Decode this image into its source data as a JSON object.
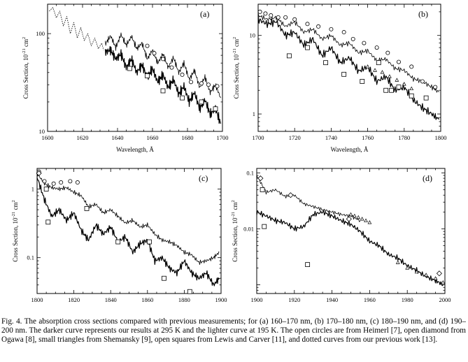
{
  "caption": "Fig.  4. The absorption cross sections compared with previous measurements; for (a) 160–170 nm, (b) 170–180 nm, (c) 180–190 nm, and (d) 190–200 nm. The darker curve represents our results at 295 K and the lighter curve at 195 K. The open circles are from Heimerl [7], open diamond from Ogawa [8], small triangles from Shemansky [9], open squares from Lewis and Carver [11], and dotted curves from our previous work [13].",
  "chart_data": [
    {
      "type": "line",
      "panel_label": "(a)",
      "xlabel": "Wavelength,  Å",
      "ylabel": "Cross Section,  10",
      "ylabel_exp1": "-21",
      "ylabel_unit": "cm",
      "ylabel_exp2": "2",
      "xlim": [
        1600,
        1700
      ],
      "xticks": [
        1600,
        1620,
        1640,
        1660,
        1680,
        1700
      ],
      "xtick_labels": [
        "1600",
        "1620",
        "1640",
        "1660",
        "1680",
        "1700"
      ],
      "yscale": "log",
      "ylim": [
        10,
        200
      ],
      "yticks": [
        10,
        100
      ],
      "ytick_labels": [
        "10",
        "100"
      ],
      "series": [
        {
          "name": "dotted (previous work)",
          "style": "dotted",
          "x": [
            1601,
            1603,
            1605,
            1607,
            1609,
            1611,
            1613,
            1615,
            1617,
            1619,
            1621,
            1623,
            1625,
            1627,
            1629,
            1631,
            1632
          ],
          "y": [
            170,
            185,
            145,
            170,
            120,
            150,
            100,
            130,
            90,
            115,
            85,
            100,
            75,
            90,
            70,
            80,
            68
          ]
        },
        {
          "name": "195 K",
          "style": "light",
          "x": [
            1633,
            1636,
            1639,
            1642,
            1645,
            1648,
            1651,
            1654,
            1657,
            1660,
            1663,
            1666,
            1669,
            1672,
            1675,
            1678,
            1681,
            1684,
            1687,
            1690,
            1693,
            1696,
            1699
          ],
          "y": [
            78,
            95,
            72,
            98,
            76,
            94,
            70,
            80,
            55,
            68,
            50,
            62,
            45,
            57,
            40,
            50,
            34,
            42,
            28,
            36,
            25,
            30,
            22
          ]
        },
        {
          "name": "295 K",
          "style": "dark",
          "x": [
            1633,
            1636,
            1639,
            1642,
            1645,
            1648,
            1651,
            1654,
            1657,
            1660,
            1663,
            1666,
            1669,
            1672,
            1675,
            1678,
            1681,
            1684,
            1687,
            1690,
            1693,
            1696,
            1699
          ],
          "y": [
            65,
            68,
            55,
            62,
            45,
            55,
            40,
            48,
            36,
            44,
            32,
            38,
            28,
            34,
            24,
            29,
            20,
            25,
            17,
            21,
            15,
            17,
            12
          ]
        }
      ],
      "markers": [
        {
          "name": "Heimerl",
          "shape": "circle",
          "x": [
            1657,
            1661,
            1666,
            1671,
            1677,
            1682,
            1688,
            1692,
            1697
          ],
          "y": [
            75,
            63,
            55,
            45,
            38,
            32,
            31,
            30,
            29
          ]
        },
        {
          "name": "Lewis and Carver",
          "shape": "square",
          "x": [
            1647,
            1657,
            1666,
            1677,
            1688,
            1696
          ],
          "y": [
            44,
            37,
            26,
            22,
            20,
            17
          ]
        }
      ]
    },
    {
      "type": "line",
      "panel_label": "(b)",
      "xlabel": "Wavelength,  Å",
      "ylabel": "Cross Section,  10",
      "ylabel_exp1": "-21",
      "ylabel_unit": "cm",
      "ylabel_exp2": "2",
      "xlim": [
        1700,
        1800
      ],
      "xticks": [
        1700,
        1720,
        1740,
        1760,
        1780,
        1800
      ],
      "xtick_labels": [
        "1700",
        "1720",
        "1740",
        "1760",
        "1780",
        "1800"
      ],
      "yscale": "log",
      "ylim": [
        0.6,
        25
      ],
      "yticks": [
        1,
        10
      ],
      "ytick_labels": [
        "1",
        "10"
      ],
      "series": [
        {
          "name": "195 K",
          "style": "light",
          "x": [
            1700,
            1705,
            1710,
            1715,
            1720,
            1725,
            1730,
            1735,
            1740,
            1745,
            1750,
            1755,
            1760,
            1765,
            1770,
            1775,
            1780,
            1785,
            1790,
            1795,
            1799
          ],
          "y": [
            18,
            16,
            17,
            13,
            15,
            11,
            12,
            9,
            10,
            7.5,
            8,
            6.0,
            6.4,
            4.8,
            5.0,
            3.8,
            3.6,
            2.8,
            2.6,
            2.2,
            1.9
          ]
        },
        {
          "name": "295 K",
          "style": "dark",
          "x": [
            1700,
            1705,
            1710,
            1715,
            1720,
            1725,
            1730,
            1735,
            1740,
            1745,
            1750,
            1755,
            1760,
            1765,
            1770,
            1775,
            1780,
            1785,
            1790,
            1795,
            1799
          ],
          "y": [
            16,
            14,
            15,
            10,
            11,
            7.5,
            9.0,
            5.5,
            7.0,
            4.5,
            5.2,
            3.5,
            4.0,
            2.6,
            3.0,
            2.0,
            2.2,
            1.5,
            1.2,
            1.0,
            0.85
          ]
        }
      ],
      "markers": [
        {
          "name": "Heimerl",
          "shape": "circle",
          "x": [
            1701,
            1704,
            1707,
            1711,
            1715,
            1720,
            1727,
            1733,
            1740,
            1747,
            1752,
            1758,
            1765,
            1771,
            1777,
            1784,
            1790,
            1797
          ],
          "y": [
            20,
            19,
            18,
            17,
            17,
            16,
            14,
            13,
            12,
            11,
            9,
            8,
            7,
            6,
            4.6,
            4.0,
            2.6,
            2.2
          ]
        },
        {
          "name": "Lewis and Carver",
          "shape": "square",
          "x": [
            1717,
            1727,
            1737,
            1747,
            1757,
            1766,
            1770,
            1773,
            1777,
            1784,
            1792
          ],
          "y": [
            5.5,
            7.0,
            4.5,
            3.2,
            2.6,
            4.5,
            2.0,
            2.0,
            2.2,
            1.7,
            1.6
          ]
        },
        {
          "name": "Shemansky",
          "shape": "triangle",
          "x": [
            1760,
            1764,
            1768,
            1772,
            1776,
            1780,
            1784
          ],
          "y": [
            4.0,
            3.6,
            3.4,
            3.0,
            2.7,
            2.4,
            2.1
          ]
        }
      ]
    },
    {
      "type": "line",
      "panel_label": "(c)",
      "xlabel": "Wavelength,  Å",
      "ylabel": "Cross Section,  10",
      "ylabel_exp1": "-21",
      "ylabel_unit": "cm",
      "ylabel_exp2": "2",
      "xlim": [
        1800,
        1900
      ],
      "xticks": [
        1800,
        1820,
        1840,
        1860,
        1880,
        1900
      ],
      "xtick_labels": [
        "1800",
        "1820",
        "1840",
        "1860",
        "1880",
        "1900"
      ],
      "yscale": "log",
      "ylim": [
        0.03,
        2
      ],
      "yticks": [
        0.1,
        1
      ],
      "ytick_labels": [
        "0.1",
        "1"
      ],
      "series": [
        {
          "name": "195 K",
          "style": "light",
          "x": [
            1800,
            1804,
            1808,
            1812,
            1816,
            1820,
            1824,
            1828,
            1832,
            1836,
            1840,
            1844,
            1848,
            1852,
            1856,
            1860,
            1864,
            1868,
            1872,
            1876,
            1880,
            1884,
            1888,
            1892,
            1896,
            1899
          ],
          "y": [
            1.7,
            1.2,
            1.05,
            1.0,
            1.05,
            0.9,
            0.8,
            0.55,
            0.6,
            0.45,
            0.5,
            0.4,
            0.32,
            0.35,
            0.28,
            0.3,
            0.22,
            0.18,
            0.17,
            0.15,
            0.12,
            0.11,
            0.085,
            0.09,
            0.1,
            0.12
          ]
        },
        {
          "name": "295 K",
          "style": "dark",
          "x": [
            1800,
            1804,
            1808,
            1812,
            1816,
            1820,
            1824,
            1828,
            1832,
            1836,
            1840,
            1844,
            1848,
            1852,
            1856,
            1860,
            1864,
            1868,
            1872,
            1876,
            1880,
            1884,
            1888,
            1892,
            1896,
            1899
          ],
          "y": [
            1.5,
            0.7,
            0.4,
            0.5,
            0.35,
            0.45,
            0.25,
            0.18,
            0.3,
            0.22,
            0.28,
            0.17,
            0.2,
            0.12,
            0.16,
            0.18,
            0.09,
            0.1,
            0.07,
            0.06,
            0.09,
            0.06,
            0.05,
            0.06,
            0.04,
            0.05
          ]
        }
      ],
      "markers": [
        {
          "name": "Heimerl",
          "shape": "circle",
          "x": [
            1801,
            1804,
            1809,
            1813,
            1818,
            1822
          ],
          "y": [
            1.8,
            1.3,
            1.2,
            1.25,
            1.3,
            1.25
          ]
        },
        {
          "name": "Ogawa",
          "shape": "diamond",
          "x": [
            1801
          ],
          "y": [
            1.7
          ]
        },
        {
          "name": "Lewis and Carver",
          "shape": "square",
          "x": [
            1805,
            1806,
            1827,
            1844,
            1861,
            1869,
            1883
          ],
          "y": [
            1.0,
            0.33,
            0.52,
            0.17,
            0.17,
            0.05,
            0.032
          ]
        }
      ]
    },
    {
      "type": "line",
      "panel_label": "(d)",
      "xlabel": "Wavelength,  Å",
      "ylabel": "Cross Section,  10",
      "ylabel_exp1": "-21",
      "ylabel_unit": "cm",
      "ylabel_exp2": "2",
      "xlim": [
        1900,
        2000
      ],
      "xticks": [
        1900,
        1920,
        1940,
        1960,
        1980,
        2000
      ],
      "xtick_labels": [
        "1900",
        "1920",
        "1940",
        "1960",
        "1980",
        "2000"
      ],
      "yscale": "log",
      "ylim": [
        0.0007,
        0.12
      ],
      "yticks": [
        0.01,
        0.1
      ],
      "ytick_labels": [
        "0.01",
        "0.1"
      ],
      "series": [
        {
          "name": "195 K",
          "style": "light",
          "x": [
            1900,
            1905,
            1910,
            1915,
            1920,
            1925,
            1930,
            1935,
            1940,
            1945,
            1950,
            1955
          ],
          "y": [
            0.09,
            0.045,
            0.05,
            0.038,
            0.04,
            0.028,
            0.025,
            0.022,
            0.02,
            0.018,
            0.017,
            0.014
          ]
        },
        {
          "name": "295 K",
          "style": "dark",
          "x": [
            1900,
            1905,
            1910,
            1915,
            1920,
            1925,
            1930,
            1935,
            1940,
            1945,
            1950,
            1955,
            1960,
            1965,
            1970,
            1975,
            1980,
            1985,
            1990,
            1995,
            1999
          ],
          "y": [
            0.02,
            0.017,
            0.014,
            0.013,
            0.01,
            0.011,
            0.018,
            0.02,
            0.017,
            0.014,
            0.012,
            0.009,
            0.006,
            0.005,
            0.0035,
            0.003,
            0.0022,
            0.0018,
            0.0014,
            0.0012,
            0.001
          ]
        }
      ],
      "markers": [
        {
          "name": "Shemansky",
          "shape": "triangle",
          "x": [
            1950,
            1952,
            1954,
            1956,
            1958,
            1960,
            1975,
            1980,
            1985,
            1990,
            1995,
            1999
          ],
          "y": [
            0.018,
            0.017,
            0.016,
            0.015,
            0.014,
            0.013,
            0.0025,
            0.002,
            0.0017,
            0.0015,
            0.0013,
            0.0011
          ]
        },
        {
          "name": "Ogawa",
          "shape": "diamond",
          "x": [
            1902,
            1918,
            1949,
            1997
          ],
          "y": [
            0.08,
            0.04,
            0.015,
            0.0016
          ]
        },
        {
          "name": "Lewis and Carver",
          "shape": "square",
          "x": [
            1903,
            1904,
            1927
          ],
          "y": [
            0.05,
            0.011,
            0.0023
          ]
        }
      ]
    }
  ]
}
